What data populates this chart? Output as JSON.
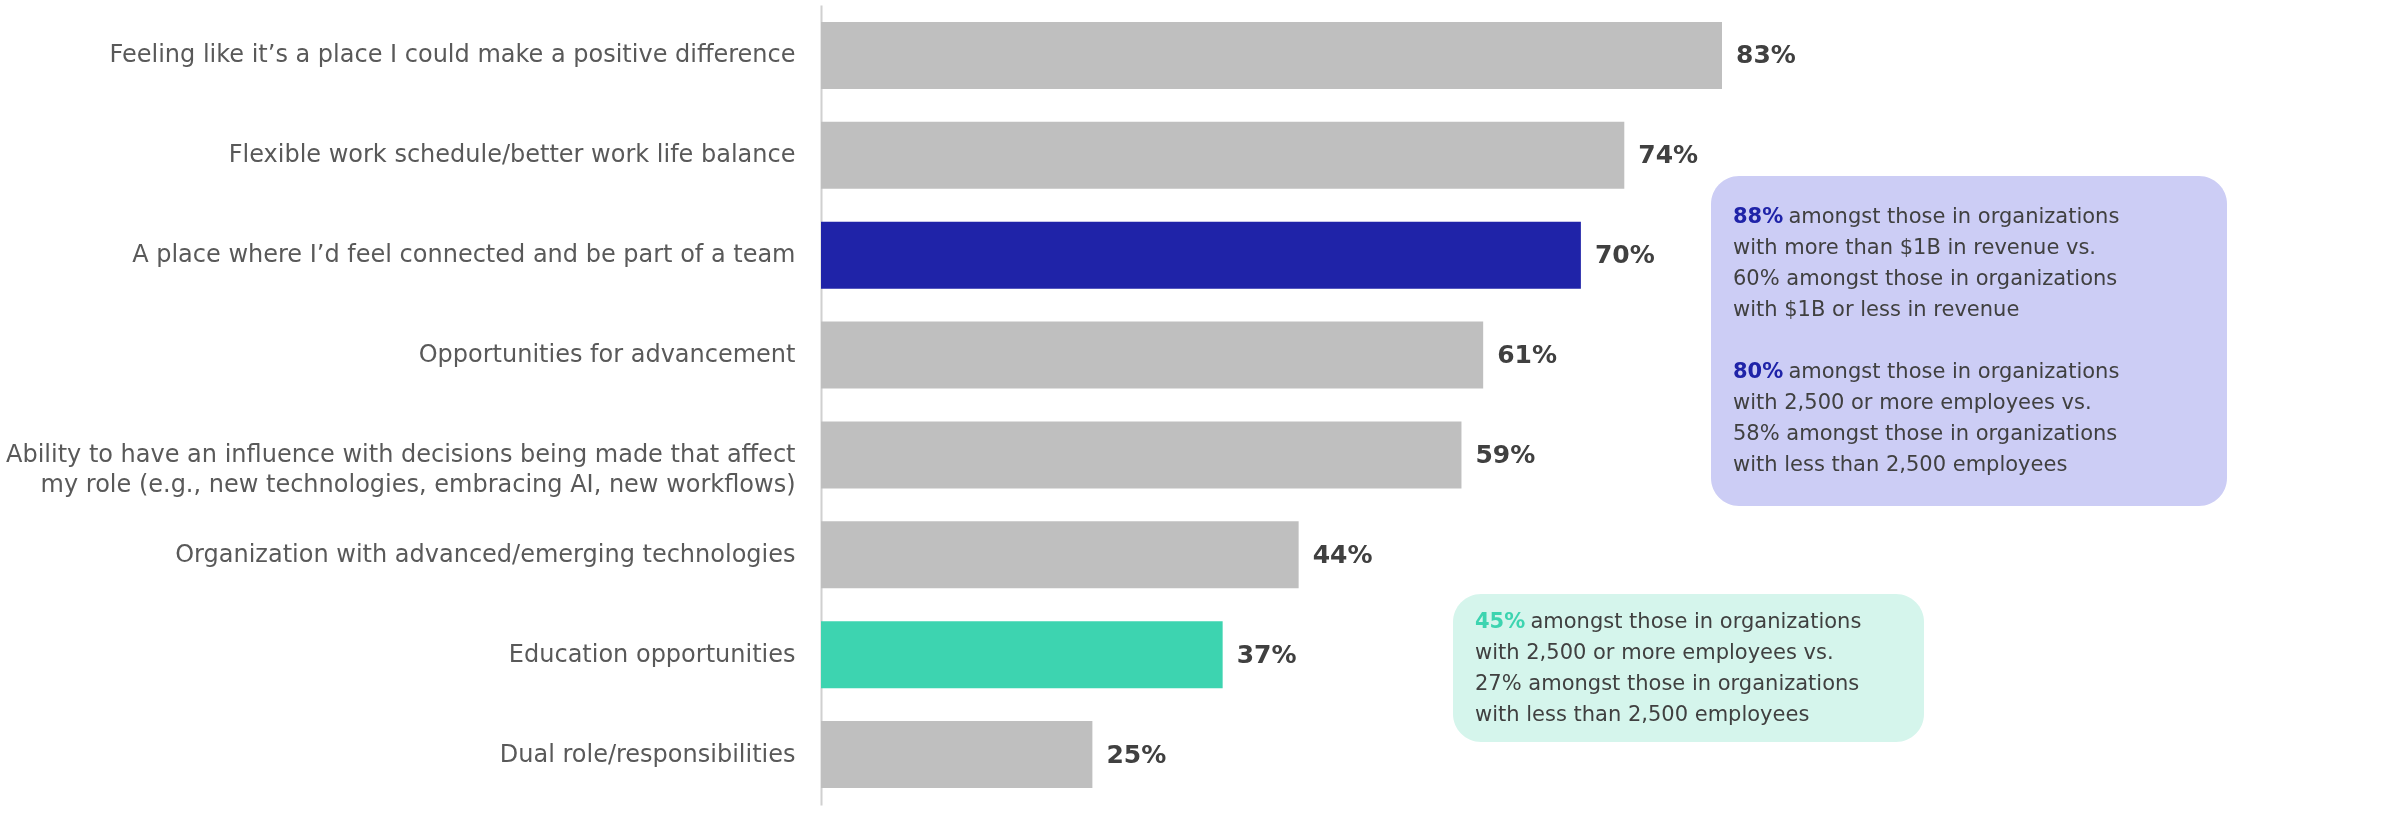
{
  "chart_data": {
    "type": "bar",
    "orientation": "horizontal",
    "categories": [
      "Feeling like it’s a place I could make a positive difference",
      "Flexible work schedule/better work life balance",
      "A place where I’d feel connected and be part of a team",
      "Opportunities for advancement",
      "Ability to have an influence with decisions being made that affect my role (e.g., new technologies, embracing AI, new workflows)",
      "Organization with advanced/emerging technologies",
      "Education opportunities",
      "Dual role/responsibilities"
    ],
    "values": [
      83,
      74,
      70,
      61,
      59,
      44,
      37,
      25
    ],
    "colors": [
      "#bfbfbf",
      "#bfbfbf",
      "#1f23a8",
      "#bfbfbf",
      "#bfbfbf",
      "#bfbfbf",
      "#3dd4b0",
      "#bfbfbf"
    ],
    "value_labels": [
      "83%",
      "74%",
      "70%",
      "61%",
      "59%",
      "44%",
      "37%",
      "25%"
    ],
    "tick_labels": "y",
    "grid": false,
    "annotations": [
      "88% amongst those in organizations\nwith more than $1B in revenue vs.\n60% amongst those in organizations\nwith $1B or less in revenue\n\n80% amongst those in organizations\nwith 2,500 or more employees vs.\n58% amongst those in organizations\nwith less than 2,500 employees",
      "45% amongst those in organizations\nwith 2,500 or more employees vs.\n27% amongst those in organizations\nwith less than 2,500 employees"
    ]
  }
}
